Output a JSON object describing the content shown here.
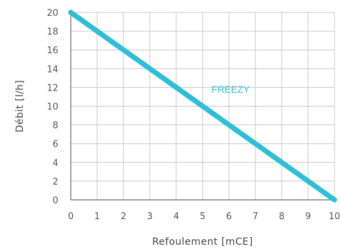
{
  "chart_data": {
    "type": "line",
    "xlabel": "Refoulement [mCE]",
    "ylabel": "Débit [l/h]",
    "xlim": [
      0,
      10
    ],
    "ylim": [
      0,
      20
    ],
    "x_ticks": [
      "0",
      "1",
      "2",
      "3",
      "4",
      "5",
      "6",
      "7",
      "8",
      "9",
      "10"
    ],
    "y_ticks": [
      "0",
      "2",
      "4",
      "6",
      "8",
      "10",
      "12",
      "14",
      "16",
      "18",
      "20"
    ],
    "grid": true,
    "series": [
      {
        "name": "FREEZY",
        "color": "#2fbfd4",
        "x": [
          0,
          10
        ],
        "y": [
          20,
          0
        ]
      }
    ],
    "colors": {
      "grid": "#c8c8c8",
      "axis": "#666666",
      "text": "#555555"
    }
  }
}
